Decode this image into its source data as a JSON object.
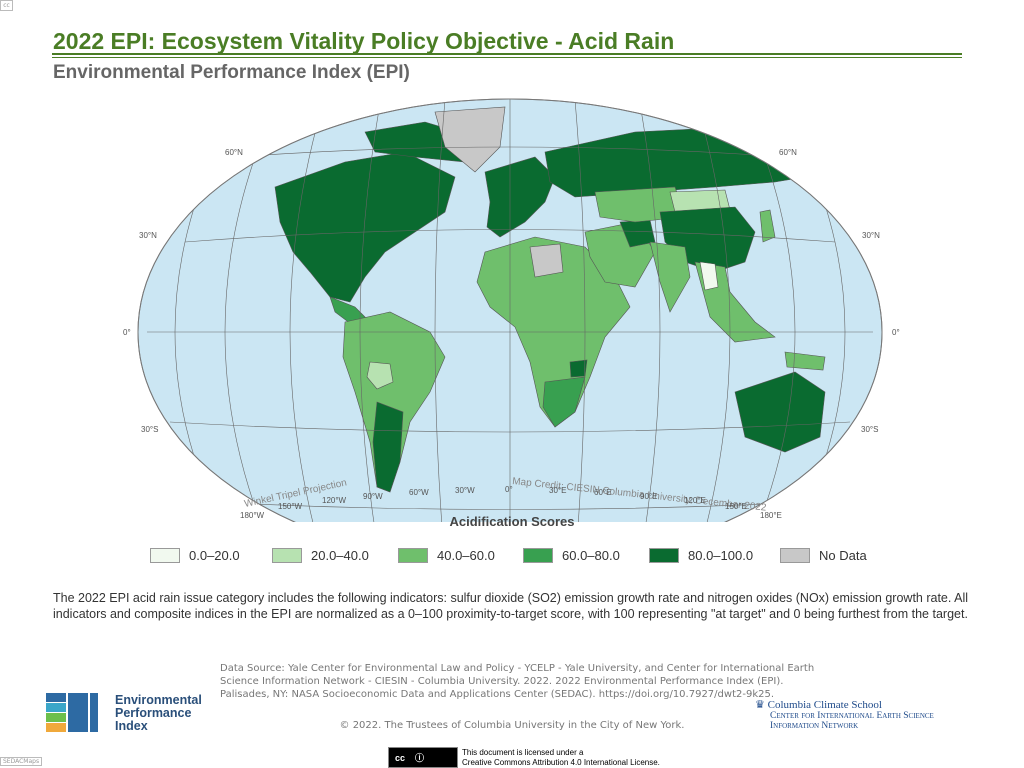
{
  "corner_label": "cc",
  "corner_bottom": "SEDACMaps",
  "title": "2022 EPI: Ecosystem Vitality Policy Objective - Acid Rain",
  "subtitle": "Environmental Performance Index (EPI)",
  "map": {
    "projection_label": "Winkel Tripel Projection",
    "credit": "Map Credit: CIESIN Columbia University, December 2022",
    "lat_labels": [
      "60°N",
      "30°N",
      "0°",
      "30°S"
    ],
    "lon_labels": [
      "180°W",
      "150°W",
      "120°W",
      "90°W",
      "60°W",
      "30°W",
      "0°",
      "30°E",
      "60°E",
      "90°E",
      "120°E",
      "150°E",
      "180°E"
    ],
    "colors": {
      "ocean": "#cbe6f3",
      "c1": "#f1f9ef",
      "c2": "#b7e2b1",
      "c3": "#6fbf6c",
      "c4": "#38a050",
      "c5": "#0a6b30",
      "nodata": "#c8c8c8"
    }
  },
  "legend": {
    "title": "Acidification Scores",
    "items": [
      {
        "label": "0.0–20.0",
        "color": "#f1f9ef"
      },
      {
        "label": "20.0–40.0",
        "color": "#b7e2b1"
      },
      {
        "label": "40.0–60.0",
        "color": "#6fbf6c"
      },
      {
        "label": "60.0–80.0",
        "color": "#38a050"
      },
      {
        "label": "80.0–100.0",
        "color": "#0a6b30"
      },
      {
        "label": "No Data",
        "color": "#c8c8c8"
      }
    ]
  },
  "description": "The 2022 EPI acid rain issue category includes the following indicators: sulfur dioxide (SO2) emission growth rate and nitrogen oxides (NOx) emission growth rate. All indicators and composite indices in the EPI are normalized as a 0–100 proximity-to-target score, with 100 representing \"at target\" and 0 being furthest from the target.",
  "source": "Data Source: Yale Center for Environmental Law and Policy - YCELP - Yale University, and Center for International Earth Science Information Network - CIESIN - Columbia University. 2022. 2022 Environmental Performance Index (EPI). Palisades, NY: NASA Socioeconomic Data and Applications Center (SEDAC). https://doi.org/10.7927/dwt2-9k25.",
  "epi_logo": {
    "line1": "Environmental",
    "line2": "Performance",
    "line3": "Index"
  },
  "copyright": "© 2022. The Trustees of Columbia University in the City of New York.",
  "ccs": {
    "line1": "Columbia Climate School",
    "line2": "Center for International Earth Science",
    "line3": "Information Network"
  },
  "license": {
    "badge": "cc",
    "line1": "This document is licensed under a",
    "line2": "Creative Commons Attribution 4.0 International License."
  }
}
